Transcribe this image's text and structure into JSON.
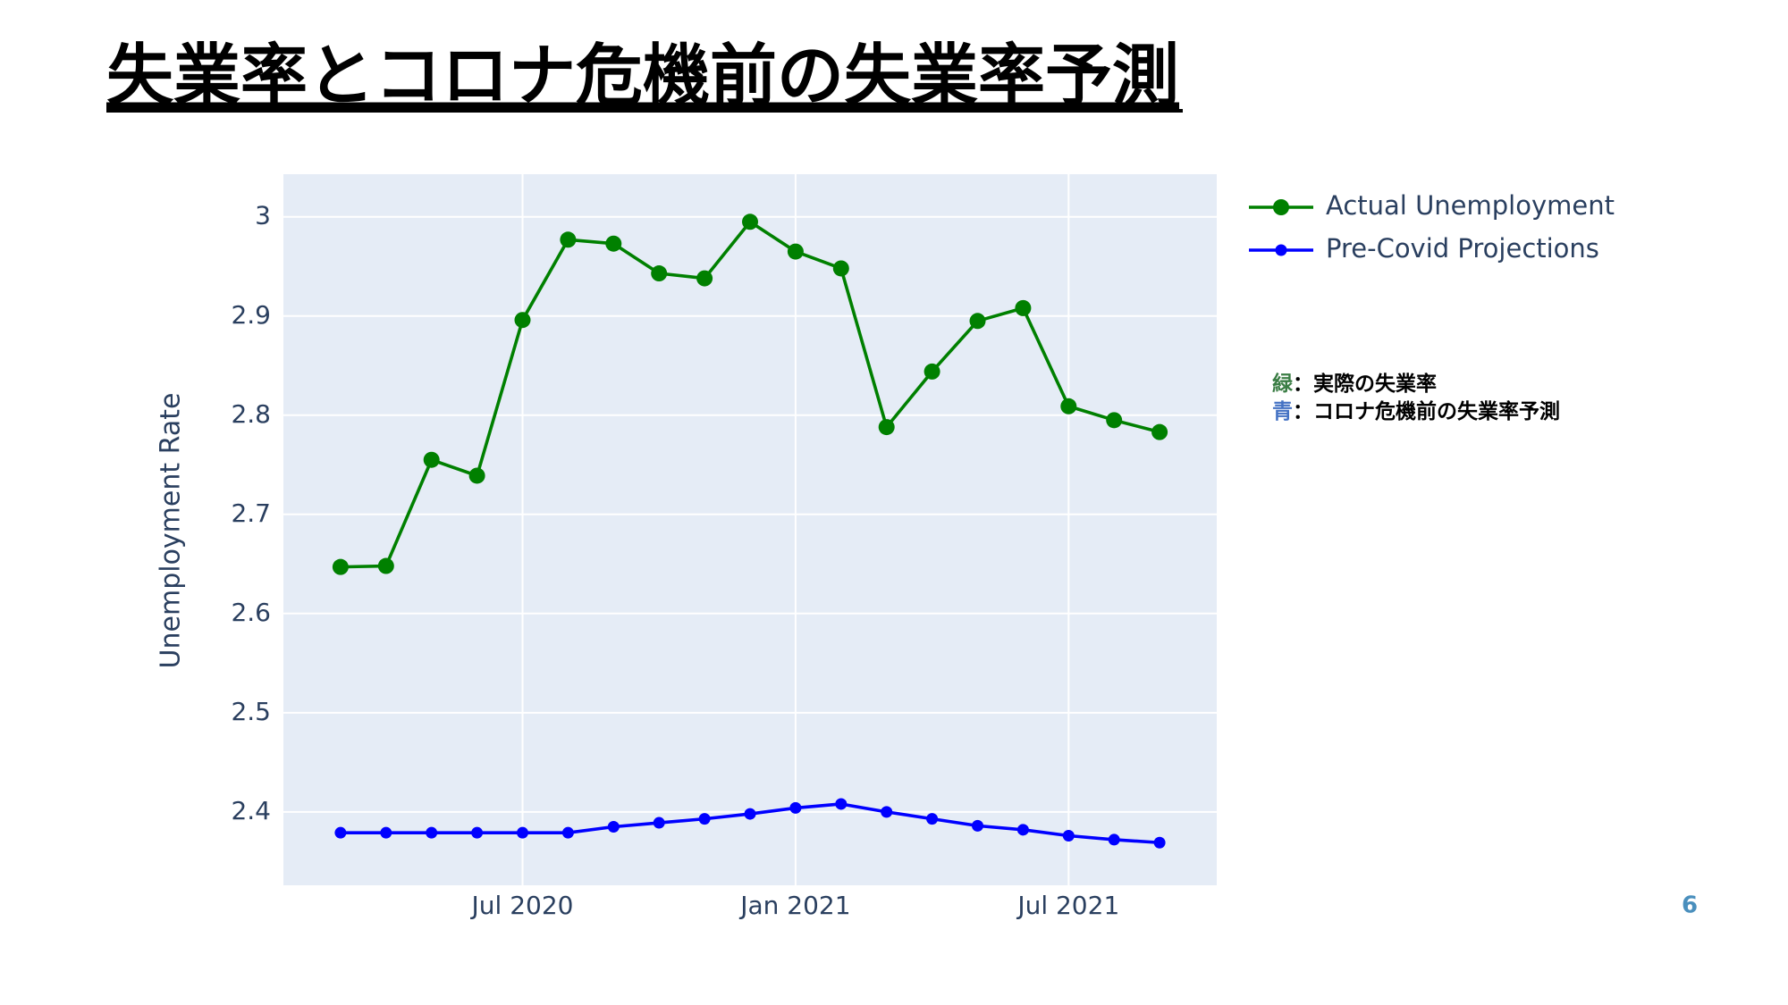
{
  "chart_data": {
    "type": "line",
    "title": "失業率とコロナ危機前の失業率予測",
    "y_label": "Unemployment Rate",
    "page_number": "6",
    "x": [
      "2020-03",
      "2020-04",
      "2020-05",
      "2020-06",
      "2020-07",
      "2020-08",
      "2020-09",
      "2020-10",
      "2020-11",
      "2020-12",
      "2021-01",
      "2021-02",
      "2021-03",
      "2021-04",
      "2021-05",
      "2021-06",
      "2021-07",
      "2021-08",
      "2021-09"
    ],
    "series": [
      {
        "name": "Actual Unemployment",
        "color": "#008000",
        "values": [
          2.647,
          2.648,
          2.755,
          2.739,
          2.896,
          2.977,
          2.973,
          2.943,
          2.938,
          2.995,
          2.965,
          2.948,
          2.788,
          2.844,
          2.895,
          2.908,
          2.809,
          2.795,
          2.783
        ]
      },
      {
        "name": "Pre-Covid Projections",
        "color": "#0000ff",
        "values": [
          2.379,
          2.379,
          2.379,
          2.379,
          2.379,
          2.379,
          2.385,
          2.389,
          2.393,
          2.398,
          2.404,
          2.408,
          2.4,
          2.393,
          2.386,
          2.382,
          2.376,
          2.372,
          2.369
        ]
      }
    ],
    "xlim": [
      "2020-02",
      "2021-10"
    ],
    "xticks": [
      {
        "value": "2020-07",
        "label": "Jul 2020"
      },
      {
        "value": "2021-01",
        "label": "Jan 2021"
      },
      {
        "value": "2021-07",
        "label": "Jul 2021"
      }
    ],
    "ylim": [
      2.326,
      3.043
    ],
    "yticks": [
      2.4,
      2.5,
      2.6,
      2.7,
      2.8,
      2.9,
      3
    ],
    "grid": true,
    "legend": "right",
    "annotations": [
      {
        "key": "緑",
        "key_color": "#3a7d44",
        "text": "：実際の失業率"
      },
      {
        "key": "青",
        "key_color": "#4472c4",
        "text": "：コロナ危機前の失業率予測"
      }
    ]
  }
}
